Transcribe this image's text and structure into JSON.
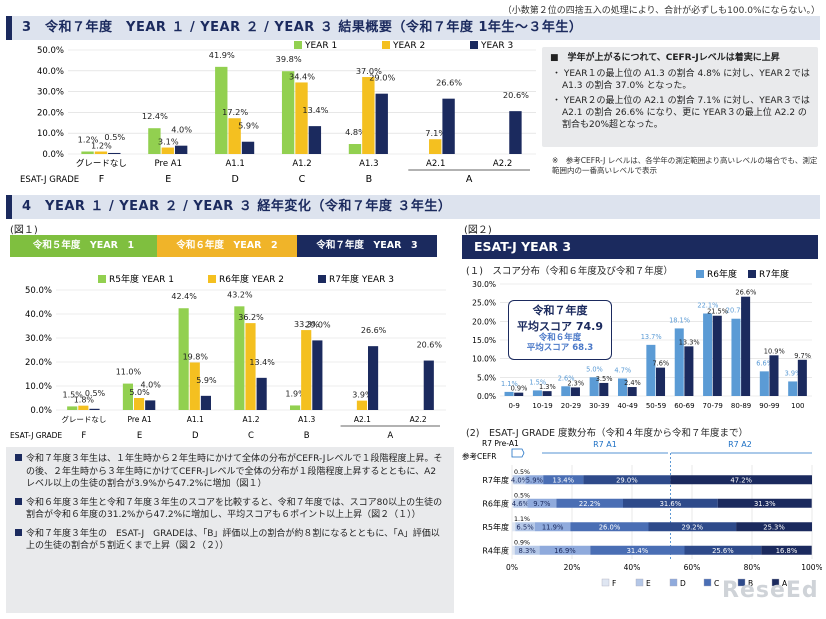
{
  "top_note": "（小数第２位の四捨五入の処理により、合計が必ずしも100.0%にならない。）",
  "section3_title": "3　令和７年度　YEAR １ / YEAR ２ / YEAR ３ 結果概要（令和７年度 1年生～３年生）",
  "section4_title": "4　YEAR １ / YEAR ２ / YEAR ３ 経年変化（令和７年度 ３年生）",
  "summary": {
    "head": "■　学年が上がるにつれて、CEFR-Jレベルは着実に上昇",
    "items": [
      "・ YEAR１の最上位の A1.3 の割合 4.8% に対し、YEAR２では A1.3 の割合 37.0% となった。",
      "・ YEAR２の最上位の A2.1 の割合 7.1% に対し、YEAR３では A2.1 の割合 26.6% になり、更に YEAR３の最上位 A2.2 の割合も20%超となった。"
    ]
  },
  "ref_note": "※　参考CEFR-J レベルは、各学年の測定範囲より高いレベルの場合でも、測定範囲内の一番高いレベルで表示",
  "fig1_label": "(図１)",
  "fig2_label": "(図２)",
  "bands": [
    "令和５年度　YEAR　1",
    "令和６年度　YEAR　2",
    "令和７年度　YEAR　3"
  ],
  "esat_title": "ESAT-J YEAR 3",
  "fig2_1_title": "(１)　スコア分布（令和６年度及び令和７年度）",
  "fig2_2_title": "(2)　ESAT-J GRADE 度数分布（令和４年度から令和７年度まで）",
  "avg_main_1": "令和７年度",
  "avg_main_2": "平均スコア 74.9",
  "avg_sub_1": "令和６年度",
  "avg_sub_2": "平均スコア 68.3",
  "bottom_bullets": [
    "令和７年度３年生は、１年生時から２年生時にかけて全体の分布がCEFR-Jレベルで１段階程度上昇。その後、２年生時から３年生時にかけてCEFR-Jレベルで全体の分布が１段階程度上昇するとともに、A2 レベル以上の生徒の割合が3.9%から47.2%に増加（図１）",
    "令和６年度３年生と令和７年度３年生のスコアを比較すると、令和７年度では、スコア80以上の生徒の割合が令和６年度の31.2%から47.2%に増加し、平均スコアも６ポイント以上上昇（図２（１））",
    "令和７年度３年生の　ESAT-J　GRADEは、「B」評価以上の割合が約８割になるとともに、「A」評価以上の生徒の割合が５割近くまで上昇（図２（２））"
  ],
  "logo": "ReseEd",
  "colors": {
    "y1": "#92d050",
    "y2": "#f4c020",
    "y3": "#1b2a5e",
    "r6": "#5b9bd5",
    "navy": "#1b2a5e"
  },
  "chart_data": [
    {
      "type": "bar",
      "categories": [
        "グレードなし",
        "Pre A1",
        "A1.1",
        "A1.2",
        "A1.3",
        "A2.1",
        "A2.2"
      ],
      "grades": [
        "F",
        "E",
        "D",
        "C",
        "B",
        "A"
      ],
      "grade_axis_label": "ESAT-J GRADE",
      "series": [
        {
          "name": "YEAR 1",
          "values": [
            1.2,
            12.4,
            41.9,
            39.8,
            4.8,
            null,
            null
          ],
          "labels": [
            "1.2%",
            "12.4%",
            "41.9%",
            "39.8%",
            "4.8%",
            "",
            ""
          ]
        },
        {
          "name": "YEAR 2",
          "values": [
            1.2,
            3.1,
            17.2,
            34.4,
            37.0,
            7.1,
            null
          ],
          "labels": [
            "1.2%",
            "3.1%",
            "17.2%",
            "34.4%",
            "37.0%",
            "7.1%",
            ""
          ]
        },
        {
          "name": "YEAR 3",
          "values": [
            0.5,
            4.0,
            5.9,
            13.4,
            29.0,
            26.6,
            20.6
          ],
          "labels": [
            "0.5%",
            "4.0%",
            "5.9%",
            "13.4%",
            "29.0%",
            "26.6%",
            "20.6%"
          ]
        }
      ],
      "ylim": [
        0,
        50
      ],
      "yticks": [
        "0.0%",
        "10.0%",
        "20.0%",
        "30.0%",
        "40.0%",
        "50.0%"
      ]
    },
    {
      "type": "bar",
      "categories": [
        "グレードなし",
        "Pre A1",
        "A1.1",
        "A1.2",
        "A1.3",
        "A2.1",
        "A2.2"
      ],
      "grades": [
        "F",
        "E",
        "D",
        "C",
        "B",
        "A"
      ],
      "grade_axis_label": "ESAT-J GRADE",
      "series": [
        {
          "name": "R5年度 YEAR 1",
          "values": [
            1.5,
            11.0,
            42.4,
            43.2,
            1.9,
            null,
            null
          ],
          "labels": [
            "1.5%",
            "11.0%",
            "42.4%",
            "43.2%",
            "1.9%",
            "",
            ""
          ]
        },
        {
          "name": "R6年度 YEAR 2",
          "values": [
            1.8,
            5.0,
            19.8,
            36.2,
            33.3,
            3.9,
            null
          ],
          "labels": [
            "1.8%",
            "5.0%",
            "19.8%",
            "36.2%",
            "33.3%",
            "3.9%",
            ""
          ]
        },
        {
          "name": "R7年度 YEAR 3",
          "values": [
            0.5,
            4.0,
            5.9,
            13.4,
            29.0,
            26.6,
            20.6
          ],
          "labels": [
            "0.5%",
            "4.0%",
            "5.9%",
            "13.4%",
            "29.0%",
            "26.6%",
            "20.6%"
          ]
        }
      ],
      "ylim": [
        0,
        50
      ],
      "yticks": [
        "0.0%",
        "10.0%",
        "20.0%",
        "30.0%",
        "40.0%",
        "50.0%"
      ]
    },
    {
      "type": "bar",
      "categories": [
        "0-9",
        "10-19",
        "20-29",
        "30-39",
        "40-49",
        "50-59",
        "60-69",
        "70-79",
        "80-89",
        "90-99",
        "100"
      ],
      "series": [
        {
          "name": "R6年度",
          "values": [
            1.1,
            1.5,
            2.6,
            5.0,
            4.7,
            13.7,
            18.1,
            22.1,
            20.7,
            6.6,
            3.9
          ],
          "labels": [
            "1.1%",
            "1.5%",
            "2.6%",
            "5.0%",
            "4.7%",
            "13.7%",
            "18.1%",
            "22.1%",
            "20.7%",
            "6.6%",
            "3.9%"
          ]
        },
        {
          "name": "R7年度",
          "values": [
            0.9,
            1.3,
            2.3,
            3.5,
            2.4,
            7.6,
            13.3,
            21.5,
            26.6,
            10.9,
            9.7
          ],
          "labels": [
            "0.9%",
            "1.3%",
            "2.3%",
            "3.5%",
            "2.4%",
            "7.6%",
            "13.3%",
            "21.5%",
            "26.6%",
            "10.9%",
            "9.7%"
          ]
        }
      ],
      "ylim": [
        0,
        30
      ],
      "yticks": [
        "0.0%",
        "5.0%",
        "10.0%",
        "15.0%",
        "20.0%",
        "25.0%",
        "30.0%"
      ]
    },
    {
      "type": "bar",
      "stacked": true,
      "orientation": "horizontal",
      "categories": [
        "R7年度",
        "R6年度",
        "R5年度",
        "R4年度"
      ],
      "segments": [
        "F",
        "E",
        "D",
        "C",
        "B",
        "A"
      ],
      "values": [
        [
          0.5,
          4.0,
          5.9,
          13.4,
          29.0,
          47.2
        ],
        [
          0.5,
          4.6,
          9.7,
          22.2,
          31.6,
          31.3
        ],
        [
          1.1,
          6.5,
          11.9,
          26.0,
          29.2,
          25.3
        ],
        [
          0.9,
          8.3,
          16.9,
          31.4,
          25.6,
          16.8
        ]
      ],
      "labels": [
        [
          "0.5%",
          "4.0%",
          "5.9%",
          "13.4%",
          "29.0%",
          "47.2%"
        ],
        [
          "0.5%",
          "4.6%",
          "9.7%",
          "22.2%",
          "31.6%",
          "31.3%"
        ],
        [
          "1.1%",
          "6.5%",
          "11.9%",
          "26.0%",
          "29.2%",
          "25.3%"
        ],
        [
          "0.9%",
          "8.3%",
          "16.9%",
          "31.4%",
          "25.6%",
          "16.8%"
        ]
      ],
      "xlim": [
        0,
        100
      ],
      "xticks": [
        "0%",
        "20%",
        "40%",
        "60%",
        "80%",
        "100%"
      ],
      "ref_label": "参考CEFR",
      "ref_levels": [
        "R7 Pre-A1",
        "R7 A1",
        "R7 A2"
      ],
      "colors": [
        "#dfe6f2",
        "#b4c7e7",
        "#8faadc",
        "#4a6eb4",
        "#2e4a8a",
        "#1b2a5e"
      ]
    }
  ]
}
